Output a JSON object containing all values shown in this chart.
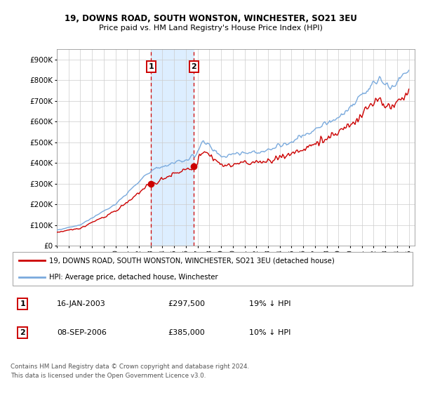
{
  "title1": "19, DOWNS ROAD, SOUTH WONSTON, WINCHESTER, SO21 3EU",
  "title2": "Price paid vs. HM Land Registry's House Price Index (HPI)",
  "ylabel_ticks": [
    "£0",
    "£100K",
    "£200K",
    "£300K",
    "£400K",
    "£500K",
    "£600K",
    "£700K",
    "£800K",
    "£900K"
  ],
  "ytick_vals": [
    0,
    100000,
    200000,
    300000,
    400000,
    500000,
    600000,
    700000,
    800000,
    900000
  ],
  "ylim": [
    0,
    950000
  ],
  "xlim_start": 1995.0,
  "xlim_end": 2025.5,
  "xtick_years": [
    1995,
    1996,
    1997,
    1998,
    1999,
    2000,
    2001,
    2002,
    2003,
    2004,
    2005,
    2006,
    2007,
    2008,
    2009,
    2010,
    2011,
    2012,
    2013,
    2014,
    2015,
    2016,
    2017,
    2018,
    2019,
    2020,
    2021,
    2022,
    2023,
    2024,
    2025
  ],
  "purchase1_x": 2003.04,
  "purchase1_y": 297500,
  "purchase2_x": 2006.69,
  "purchase2_y": 385000,
  "purchase1_label": "1",
  "purchase2_label": "2",
  "purchase_color": "#cc0000",
  "hpi_color": "#7aaadd",
  "vline_color": "#cc0000",
  "shaded_color": "#ddeeff",
  "legend_line1": "19, DOWNS ROAD, SOUTH WONSTON, WINCHESTER, SO21 3EU (detached house)",
  "legend_line2": "HPI: Average price, detached house, Winchester",
  "table_row1": [
    "1",
    "16-JAN-2003",
    "£297,500",
    "19% ↓ HPI"
  ],
  "table_row2": [
    "2",
    "08-SEP-2006",
    "£385,000",
    "10% ↓ HPI"
  ],
  "footnote": "Contains HM Land Registry data © Crown copyright and database right 2024.\nThis data is licensed under the Open Government Licence v3.0.",
  "bg_color": "#ffffff",
  "grid_color": "#cccccc"
}
